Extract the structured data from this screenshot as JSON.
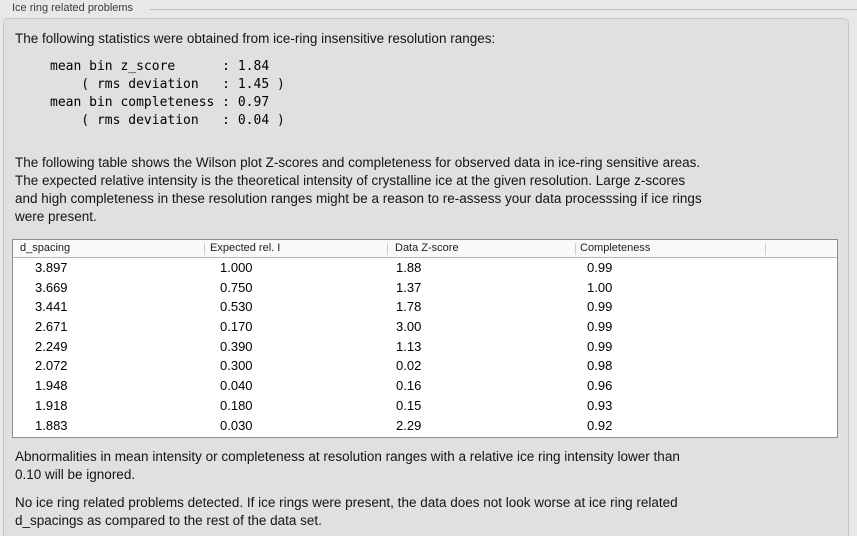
{
  "window": {
    "title": "Ice ring related problems"
  },
  "panel": {
    "intro": "The following statistics were obtained from ice-ring insensitive resolution ranges:",
    "stats_block": "mean bin z_score      : 1.84\n    ( rms deviation   : 1.45 )\nmean bin completeness : 0.97\n    ( rms deviation   : 0.04 )",
    "stats": {
      "mean_bin_z_score": "1.84",
      "z_score_rms_deviation": "1.45",
      "mean_bin_completeness": "0.97",
      "completeness_rms_deviation": "0.04"
    },
    "table_caption": "The following table shows the Wilson plot Z-scores and completeness for observed data in ice-ring sensitive areas.\nThe expected relative intensity is the theoretical intensity of crystalline ice at the given resolution. Large z-scores\nand high completeness in these resolution ranges might be a reason to re-assess your data processsing if ice rings\nwere present.",
    "table": {
      "columns": [
        "d_spacing",
        "Expected rel. I",
        "Data Z-score",
        "Completeness"
      ],
      "rows": [
        [
          "3.897",
          "1.000",
          "1.88",
          "0.99"
        ],
        [
          "3.669",
          "0.750",
          "1.37",
          "1.00"
        ],
        [
          "3.441",
          "0.530",
          "1.78",
          "0.99"
        ],
        [
          "2.671",
          "0.170",
          "3.00",
          "0.99"
        ],
        [
          "2.249",
          "0.390",
          "1.13",
          "0.99"
        ],
        [
          "2.072",
          "0.300",
          "0.02",
          "0.98"
        ],
        [
          "1.948",
          "0.040",
          "0.16",
          "0.96"
        ],
        [
          "1.918",
          "0.180",
          "0.15",
          "0.93"
        ],
        [
          "1.883",
          "0.030",
          "2.29",
          "0.92"
        ]
      ]
    },
    "ignore_note": "Abnormalities in mean intensity or completeness at resolution ranges with a relative ice ring intensity lower than\n0.10 will be ignored.",
    "conclusion": "No ice ring related problems detected. If ice rings were present, the data does not look worse at ice ring related\nd_spacings as compared to the rest of the data set."
  },
  "colors": {
    "page_background": "#e8e8e8",
    "panel_background": "#e0e0e0",
    "table_border": "#8e8e8e",
    "header_background": "#f9f9f9"
  }
}
